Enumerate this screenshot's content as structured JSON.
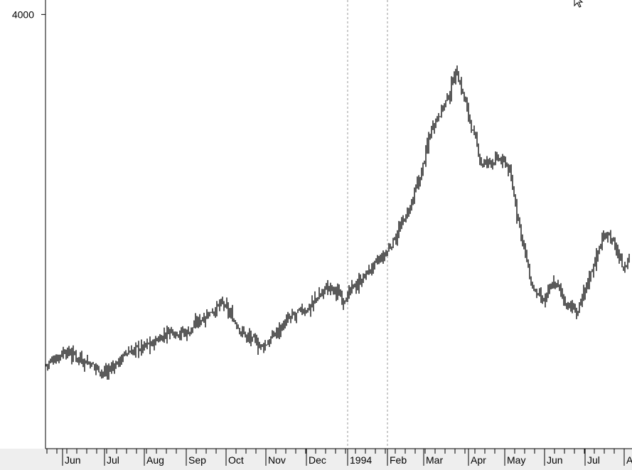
{
  "chart_data": {
    "type": "bar",
    "subtype": "ohlc-price-bars",
    "y_labels": [
      {
        "value": 4000,
        "text": "4000"
      }
    ],
    "ylim": [
      2500,
      4050
    ],
    "x_month_labels": [
      "Jun",
      "Jul",
      "Aug",
      "Sep",
      "Oct",
      "Nov",
      "Dec",
      "1994",
      "Feb",
      "Mar",
      "Apr",
      "May",
      "Jun",
      "Jul",
      "A"
    ],
    "vertical_markers": [
      "1994",
      "Feb"
    ],
    "grid": false,
    "series_color": "#000000",
    "price_path_anchors": [
      [
        0.0,
        2790
      ],
      [
        0.03,
        2840
      ],
      [
        0.07,
        2800
      ],
      [
        0.1,
        2760
      ],
      [
        0.14,
        2835
      ],
      [
        0.18,
        2860
      ],
      [
        0.21,
        2910
      ],
      [
        0.24,
        2900
      ],
      [
        0.27,
        2960
      ],
      [
        0.3,
        3000
      ],
      [
        0.34,
        2890
      ],
      [
        0.37,
        2850
      ],
      [
        0.41,
        2940
      ],
      [
        0.45,
        2990
      ],
      [
        0.48,
        3060
      ],
      [
        0.51,
        3020
      ],
      [
        0.55,
        3110
      ],
      [
        0.58,
        3170
      ],
      [
        0.62,
        3320
      ],
      [
        0.64,
        3440
      ],
      [
        0.66,
        3620
      ],
      [
        0.69,
        3720
      ],
      [
        0.7,
        3820
      ],
      [
        0.715,
        3710
      ],
      [
        0.73,
        3590
      ],
      [
        0.745,
        3480
      ],
      [
        0.77,
        3500
      ],
      [
        0.79,
        3480
      ],
      [
        0.83,
        3060
      ],
      [
        0.85,
        3000
      ],
      [
        0.87,
        3080
      ],
      [
        0.89,
        3000
      ],
      [
        0.91,
        2970
      ],
      [
        0.94,
        3160
      ],
      [
        0.96,
        3260
      ],
      [
        0.99,
        3110
      ],
      [
        1.0,
        3190
      ]
    ]
  }
}
